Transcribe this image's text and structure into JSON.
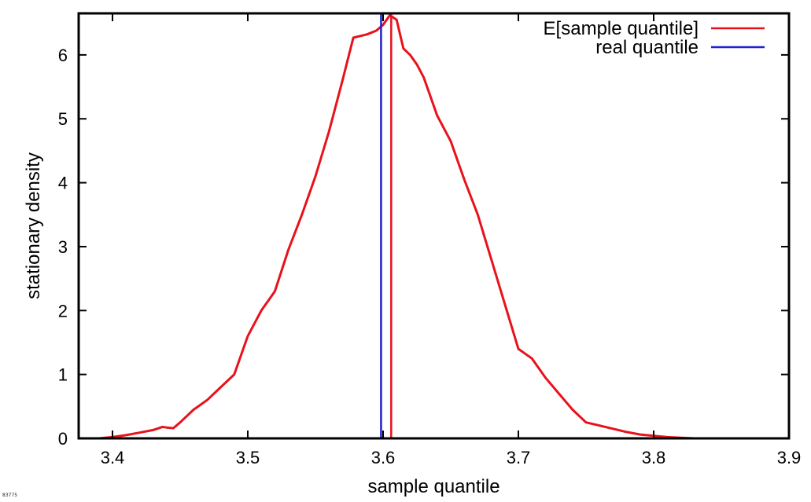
{
  "chart_data": {
    "type": "line",
    "xlabel": "sample quantile",
    "ylabel": "stationary density",
    "xlim": [
      3.375,
      3.9
    ],
    "ylim": [
      0,
      6.65
    ],
    "x_ticks": [
      "3.4",
      "3.5",
      "3.6",
      "3.7",
      "3.8",
      "3.9"
    ],
    "y_ticks": [
      "0",
      "1",
      "2",
      "3",
      "4",
      "5",
      "6"
    ],
    "grid": false,
    "legend_position": "top-right",
    "series": [
      {
        "name": "",
        "color": "#e8121b",
        "x": [
          3.375,
          3.39,
          3.4,
          3.41,
          3.42,
          3.43,
          3.437,
          3.44,
          3.445,
          3.45,
          3.46,
          3.47,
          3.48,
          3.49,
          3.5,
          3.51,
          3.52,
          3.53,
          3.54,
          3.55,
          3.56,
          3.57,
          3.578,
          3.588,
          3.595,
          3.6,
          3.605,
          3.61,
          3.615,
          3.62,
          3.625,
          3.63,
          3.635,
          3.64,
          3.65,
          3.66,
          3.67,
          3.68,
          3.69,
          3.7,
          3.71,
          3.72,
          3.73,
          3.74,
          3.75,
          3.76,
          3.77,
          3.78,
          3.79,
          3.8,
          3.81,
          3.82,
          3.83,
          3.84,
          3.85,
          3.87,
          3.9
        ],
        "y": [
          0.0,
          0.0,
          0.02,
          0.05,
          0.09,
          0.13,
          0.18,
          0.17,
          0.16,
          0.25,
          0.45,
          0.6,
          0.8,
          1.0,
          1.6,
          2.0,
          2.3,
          2.95,
          3.5,
          4.1,
          4.8,
          5.6,
          6.27,
          6.32,
          6.38,
          6.47,
          6.62,
          6.55,
          6.1,
          6.0,
          5.85,
          5.65,
          5.35,
          5.05,
          4.65,
          4.05,
          3.5,
          2.8,
          2.1,
          1.4,
          1.25,
          0.95,
          0.7,
          0.45,
          0.25,
          0.2,
          0.15,
          0.1,
          0.06,
          0.04,
          0.02,
          0.01,
          0.0,
          0.0,
          0.0,
          0.0,
          0.0
        ]
      }
    ],
    "vertical_lines": [
      {
        "name": "E[sample quantile]",
        "x": 3.606,
        "color": "#e8121b"
      },
      {
        "name": "real quantile",
        "x": 3.5985,
        "color": "#1f1fd4"
      }
    ],
    "legend": [
      {
        "label": "E[sample quantile]",
        "color": "#e8121b"
      },
      {
        "label": "real quantile",
        "color": "#1f1fd4"
      }
    ]
  },
  "footer_tag": "83775"
}
